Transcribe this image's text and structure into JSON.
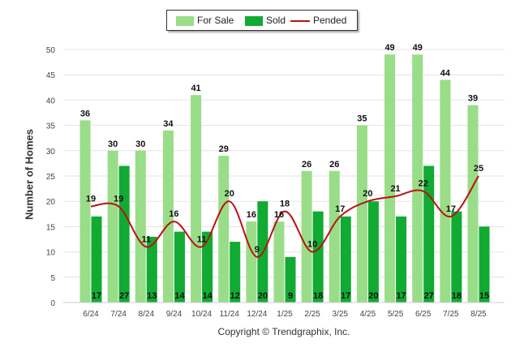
{
  "chart_data": {
    "type": "bar",
    "ylabel": "Number of Homes",
    "ylim": [
      0,
      50
    ],
    "yticks": [
      "0",
      "5",
      "10",
      "15",
      "20",
      "25",
      "30",
      "35",
      "40",
      "45",
      "50"
    ],
    "grid": "horizontal",
    "legend_position": "top-center",
    "categories": [
      "6/24",
      "7/24",
      "8/24",
      "9/24",
      "10/24",
      "11/24",
      "12/24",
      "1/25",
      "2/25",
      "3/25",
      "4/25",
      "5/25",
      "6/25",
      "7/25",
      "8/25"
    ],
    "series": [
      {
        "name": "For Sale",
        "kind": "bar",
        "color": "#99dd88",
        "values": [
          36,
          30,
          30,
          34,
          41,
          29,
          16,
          16,
          26,
          26,
          35,
          49,
          49,
          44,
          39
        ]
      },
      {
        "name": "Sold",
        "kind": "bar",
        "color": "#11aa33",
        "values": [
          17,
          27,
          13,
          14,
          14,
          12,
          20,
          9,
          18,
          17,
          20,
          17,
          27,
          18,
          15
        ]
      },
      {
        "name": "Pended",
        "kind": "line",
        "color": "#bb1111",
        "values": [
          19,
          19,
          11,
          16,
          11,
          20,
          9,
          18,
          10,
          17,
          20,
          21,
          22,
          17,
          25
        ]
      }
    ]
  },
  "credit": "Copyright © Trendgraphix, Inc."
}
